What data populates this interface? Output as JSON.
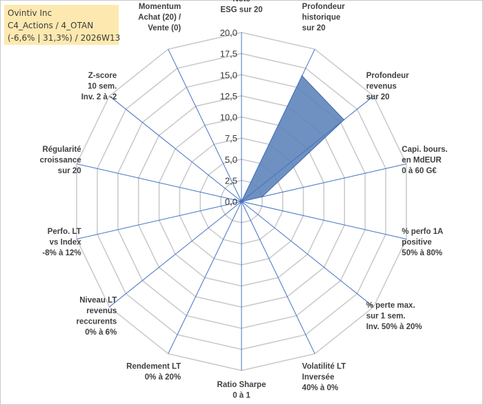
{
  "info": {
    "line1": "Ovintiv Inc",
    "line2": "C4_Actions / 4_OTAN",
    "line3": "(-6,6% | 31,3%) / 2026W13"
  },
  "chart_data": {
    "type": "radar",
    "rmin": 0,
    "rmax": 20,
    "tick_step": 2.5,
    "tick_labels": [
      "0,0",
      "2,5",
      "5,0",
      "7,5",
      "10,0",
      "12,5",
      "15,0",
      "17,5",
      "20,0"
    ],
    "categories": [
      [
        "Note",
        "ESG sur 20"
      ],
      [
        "Profondeur",
        "historique",
        "sur 20"
      ],
      [
        "Profondeur",
        "revenus",
        "sur 20"
      ],
      [
        "Capi. bours.",
        "en MdEUR",
        "0 à 60 G€"
      ],
      [
        "% perfo 1A",
        "positive",
        "50% à 80%"
      ],
      [
        "% perte max.",
        "sur 1 sem.",
        "Inv. 50% à 20%"
      ],
      [
        "Volatilité LT",
        "Inversée",
        "40% à 0%"
      ],
      [
        "Ratio Sharpe",
        "0 à 1"
      ],
      [
        "Rendement LT",
        "0% à 20%"
      ],
      [
        "Niveau LT",
        "revenus",
        "reccurents",
        "0% à 6%"
      ],
      [
        "Perfo. LT",
        "vs Index",
        "-8% à 12%"
      ],
      [
        "Régularité",
        "croissance",
        "sur 20"
      ],
      [
        "Z-score",
        "10 sem.",
        "Inv. 2 à -2"
      ],
      [
        "Momentum",
        "Achat (20) /",
        "Vente (0)"
      ]
    ],
    "series": [
      {
        "values": [
          0,
          16.5,
          15.5,
          2.5,
          0,
          0,
          0,
          0,
          0,
          0,
          0,
          0,
          0,
          0
        ],
        "color": "#5b82b8"
      }
    ],
    "grid_color": "#c8c8c8",
    "spoke_color": "#4472c4"
  }
}
